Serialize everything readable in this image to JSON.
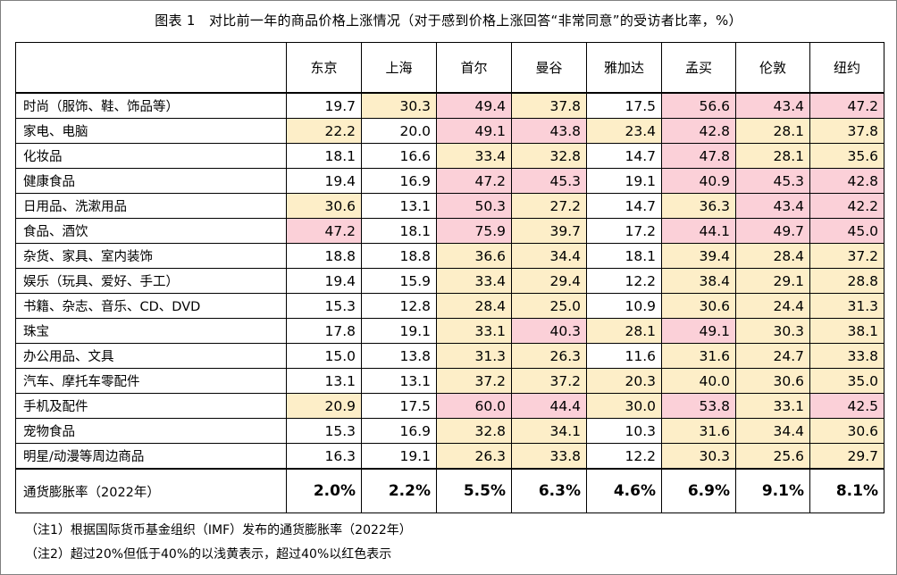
{
  "title": "图表 1　对比前一年的商品价格上涨情况（对于感到价格上涨回答“非常同意”的受访者比率，%）",
  "columns": [
    "东京",
    "上海",
    "首尔",
    "曼谷",
    "雅加达",
    "孟买",
    "伦敦",
    "纽约"
  ],
  "rows": [
    {
      "label": "时尚（服饰、鞋、饰品等）",
      "values": [
        "19.7",
        "30.3",
        "49.4",
        "37.8",
        "17.5",
        "56.6",
        "43.4",
        "47.2"
      ],
      "levels": [
        "n",
        "y",
        "r",
        "y",
        "n",
        "r",
        "r",
        "r"
      ]
    },
    {
      "label": "家电、电脑",
      "values": [
        "22.2",
        "20.0",
        "49.1",
        "43.8",
        "23.4",
        "42.8",
        "28.1",
        "37.8"
      ],
      "levels": [
        "y",
        "n",
        "r",
        "r",
        "y",
        "r",
        "y",
        "y"
      ]
    },
    {
      "label": "化妆品",
      "values": [
        "18.1",
        "16.6",
        "33.4",
        "32.8",
        "14.7",
        "47.8",
        "28.1",
        "35.6"
      ],
      "levels": [
        "n",
        "n",
        "y",
        "y",
        "n",
        "r",
        "y",
        "y"
      ]
    },
    {
      "label": "健康食品",
      "values": [
        "19.4",
        "16.9",
        "47.2",
        "45.3",
        "19.1",
        "40.9",
        "45.3",
        "42.8"
      ],
      "levels": [
        "n",
        "n",
        "r",
        "r",
        "n",
        "r",
        "r",
        "r"
      ]
    },
    {
      "label": "日用品、洗漱用品",
      "values": [
        "30.6",
        "13.1",
        "50.3",
        "27.2",
        "14.7",
        "36.3",
        "43.4",
        "42.2"
      ],
      "levels": [
        "y",
        "n",
        "r",
        "y",
        "n",
        "y",
        "r",
        "r"
      ]
    },
    {
      "label": "食品、酒饮",
      "values": [
        "47.2",
        "18.1",
        "75.9",
        "39.7",
        "17.2",
        "44.1",
        "49.7",
        "45.0"
      ],
      "levels": [
        "r",
        "n",
        "r",
        "y",
        "n",
        "r",
        "r",
        "r"
      ]
    },
    {
      "label": "杂货、家具、室内装饰",
      "values": [
        "18.8",
        "18.8",
        "36.6",
        "34.4",
        "18.1",
        "39.4",
        "28.4",
        "37.2"
      ],
      "levels": [
        "n",
        "n",
        "y",
        "y",
        "n",
        "y",
        "y",
        "y"
      ]
    },
    {
      "label": "娱乐（玩具、爱好、手工）",
      "values": [
        "19.4",
        "15.9",
        "33.4",
        "29.4",
        "12.2",
        "38.4",
        "29.1",
        "28.8"
      ],
      "levels": [
        "n",
        "n",
        "y",
        "y",
        "n",
        "y",
        "y",
        "y"
      ]
    },
    {
      "label": "书籍、杂志、音乐、CD、DVD",
      "values": [
        "15.3",
        "12.8",
        "28.4",
        "25.0",
        "10.9",
        "30.6",
        "24.4",
        "31.3"
      ],
      "levels": [
        "n",
        "n",
        "y",
        "y",
        "n",
        "y",
        "y",
        "y"
      ]
    },
    {
      "label": "珠宝",
      "values": [
        "17.8",
        "19.1",
        "33.1",
        "40.3",
        "28.1",
        "49.1",
        "30.3",
        "38.1"
      ],
      "levels": [
        "n",
        "n",
        "y",
        "r",
        "y",
        "r",
        "y",
        "y"
      ]
    },
    {
      "label": "办公用品、文具",
      "values": [
        "15.0",
        "13.8",
        "31.3",
        "26.3",
        "11.6",
        "31.6",
        "24.7",
        "33.8"
      ],
      "levels": [
        "n",
        "n",
        "y",
        "y",
        "n",
        "y",
        "y",
        "y"
      ]
    },
    {
      "label": "汽车、摩托车零配件",
      "values": [
        "13.1",
        "13.1",
        "37.2",
        "37.2",
        "20.3",
        "40.0",
        "30.6",
        "35.0"
      ],
      "levels": [
        "n",
        "n",
        "y",
        "y",
        "y",
        "y",
        "y",
        "y"
      ]
    },
    {
      "label": "手机及配件",
      "values": [
        "20.9",
        "17.5",
        "60.0",
        "44.4",
        "30.0",
        "53.8",
        "33.1",
        "42.5"
      ],
      "levels": [
        "y",
        "n",
        "r",
        "r",
        "y",
        "r",
        "y",
        "r"
      ]
    },
    {
      "label": "宠物食品",
      "values": [
        "15.3",
        "16.9",
        "32.8",
        "34.1",
        "10.3",
        "31.6",
        "34.4",
        "30.6"
      ],
      "levels": [
        "n",
        "n",
        "y",
        "y",
        "n",
        "y",
        "y",
        "y"
      ]
    },
    {
      "label": "明星/动漫等周边商品",
      "values": [
        "16.3",
        "19.1",
        "26.3",
        "33.8",
        "12.2",
        "30.3",
        "25.6",
        "29.7"
      ],
      "levels": [
        "n",
        "n",
        "y",
        "y",
        "n",
        "y",
        "y",
        "y"
      ]
    }
  ],
  "inflation": {
    "label": "通货膨胀率（2022年）",
    "values": [
      "2.0%",
      "2.2%",
      "5.5%",
      "6.3%",
      "4.6%",
      "6.9%",
      "9.1%",
      "8.1%"
    ]
  },
  "notes": [
    "（注1）根据国际货币基金组织（IMF）发布的通货膨胀率（2022年）",
    "（注2）超过20%但低于40%的以浅黄表示，超过40%以红色表示"
  ],
  "colors": {
    "yellow": "#fdeec8",
    "red": "#fbd0d8"
  }
}
